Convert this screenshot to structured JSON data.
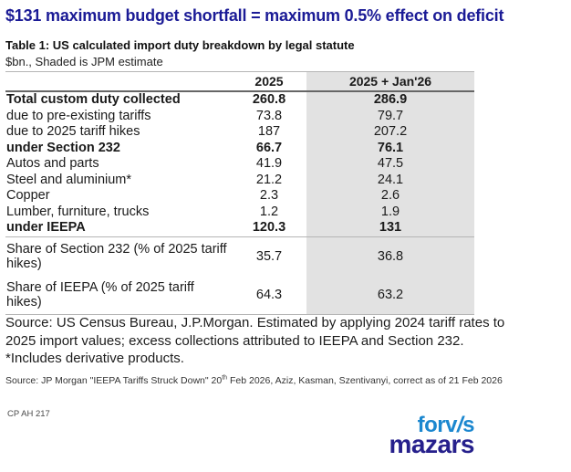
{
  "title": "$131 maximum budget shortfall = maximum 0.5% effect on deficit",
  "table": {
    "heading": "Table 1: US calculated import duty breakdown by legal statute",
    "subtitle": "$bn., Shaded is JPM estimate",
    "columns": [
      "",
      "2025",
      "2025 + Jan'26"
    ],
    "rows": [
      {
        "label": "Total custom duty collected",
        "v2025": "260.8",
        "v2026": "286.9",
        "bold": true
      },
      {
        "label": "due to pre-existing tariffs",
        "v2025": "73.8",
        "v2026": "79.7"
      },
      {
        "label": "due to 2025 tariff hikes",
        "v2025": "187",
        "v2026": "207.2"
      },
      {
        "label": "under Section 232",
        "v2025": "66.7",
        "v2026": "76.1",
        "bold": true
      },
      {
        "label": "Autos and parts",
        "v2025": "41.9",
        "v2026": "47.5"
      },
      {
        "label": "Steel and aluminium*",
        "v2025": "21.2",
        "v2026": "24.1"
      },
      {
        "label": "Copper",
        "v2025": "2.3",
        "v2026": "2.6"
      },
      {
        "label": "Lumber, furniture, trucks",
        "v2025": "1.2",
        "v2026": "1.9"
      },
      {
        "label": "under IEEPA",
        "v2025": "120.3",
        "v2026": "131",
        "bold": true,
        "separator_below": true
      },
      {
        "label": "Share of Section 232 (% of 2025 tariff hikes)",
        "v2025": "35.7",
        "v2026": "36.8",
        "tall": true
      },
      {
        "label": "Share of IEEPA (% of 2025 tariff hikes)",
        "v2025": "64.3",
        "v2026": "63.2",
        "tall": true
      }
    ]
  },
  "source_note_lines": [
    "Source: US Census Bureau, J.P.Morgan. Estimated by applying 2024 tariff rates to",
    "2025 import values; excess collections attributed to IEEPA and Section 232.",
    "*Includes derivative products."
  ],
  "footnote": {
    "pre": "Source: JP Morgan \"IEEPA Tariffs Struck Down\" 20",
    "sup": "th",
    "post": " Feb 2026, Aziz, Kasman, Szentivanyi, correct as of 21 Feb 2026"
  },
  "doc_code": "CP AH 217",
  "logo": {
    "forvis_pre": "forv",
    "forvis_slash": "/",
    "forvis_post": "s",
    "mazars": "mazars"
  },
  "colors": {
    "title_blue": "#1b1b96",
    "text_dark": "#1a1a1a",
    "shade": "#e2e2e2",
    "border_light": "#b5b5b5",
    "border_dark": "#666666",
    "forvis_blue": "#1b87cf",
    "mazars_indigo": "#26208c",
    "muted_gray": "#4a4a4a"
  }
}
